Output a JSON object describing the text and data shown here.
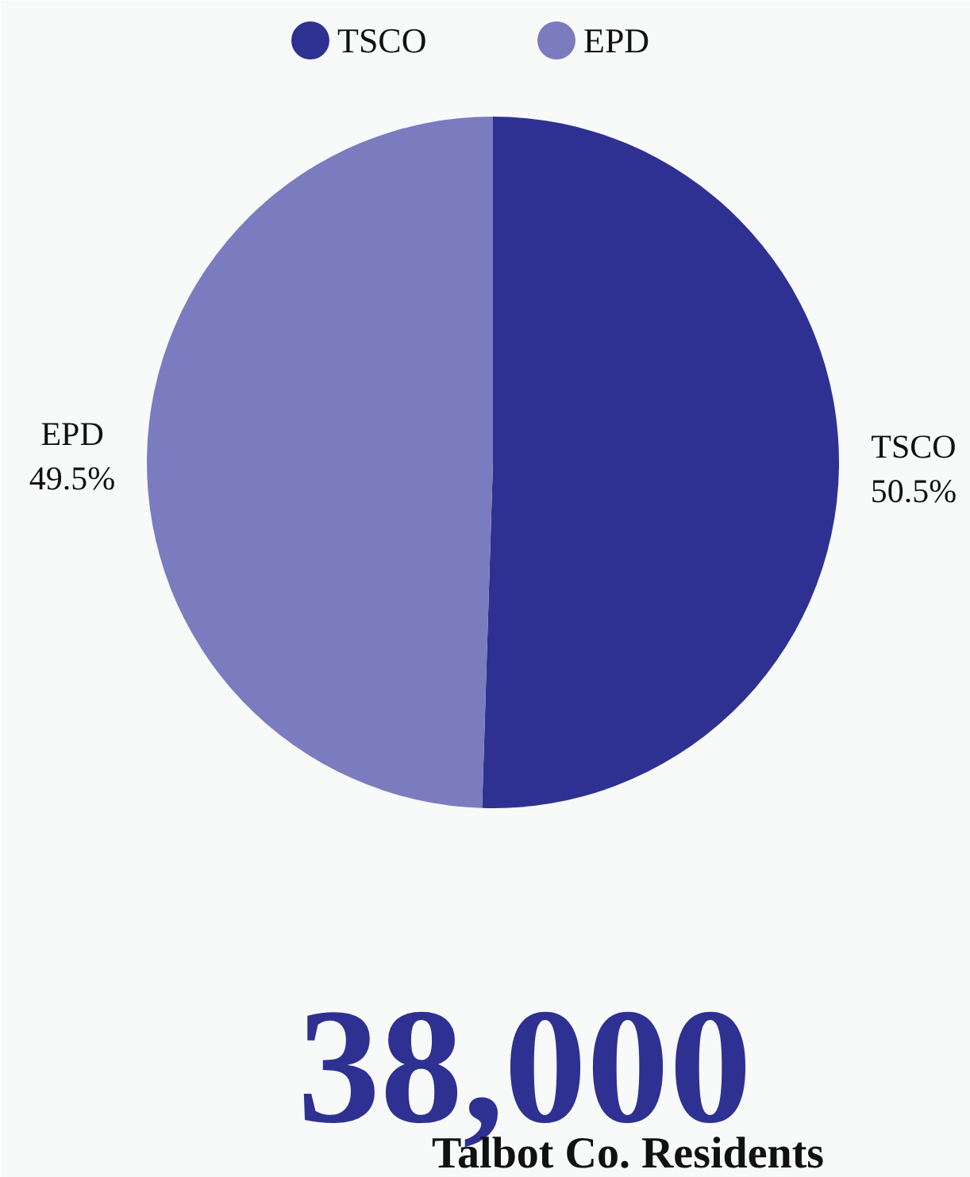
{
  "chart_data": {
    "type": "pie",
    "categories": [
      "TSCO",
      "EPD"
    ],
    "values": [
      50.5,
      49.5
    ],
    "colors": [
      "#2e3192",
      "#7b7bc0"
    ],
    "value_labels": [
      "50.5%",
      "49.5%"
    ],
    "legend": "top",
    "annotations": [
      "38,000",
      "Talbot Co. Residents"
    ]
  }
}
